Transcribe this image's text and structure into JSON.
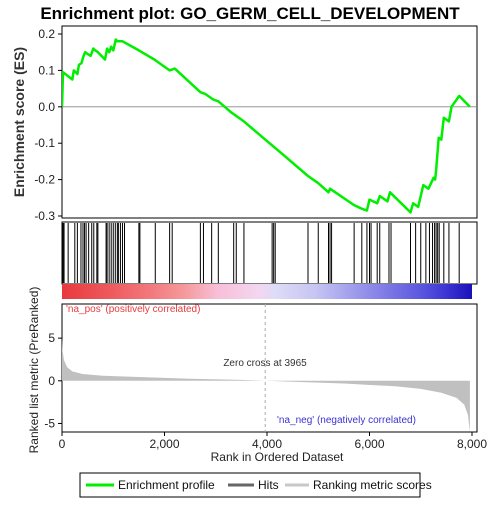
{
  "chart_data": [
    {
      "type": "line",
      "title": "Enrichment plot: GO_GERM_CELL_DEVELOPMENT",
      "ylabel": "Enrichment score (ES)",
      "ylim": [
        -0.3,
        0.2
      ],
      "xlim": [
        0,
        8000
      ],
      "grid": false,
      "y_ticks": [
        "0.2",
        "0.1",
        "0.0",
        "-0.1",
        "-0.2",
        "-0.3"
      ],
      "series": [
        {
          "name": "Enrichment profile",
          "color": "#00ee00",
          "x": [
            0,
            20,
            200,
            230,
            300,
            330,
            380,
            410,
            450,
            500,
            560,
            610,
            650,
            700,
            840,
            880,
            920,
            960,
            1000,
            1050,
            1080,
            1120,
            1180,
            1500,
            1800,
            2100,
            2200,
            2700,
            2800,
            2950,
            3050,
            3300,
            3550,
            3965,
            4300,
            4800,
            5000,
            5200,
            5230,
            5700,
            5850,
            5950,
            6000,
            6150,
            6200,
            6350,
            6400,
            6800,
            6850,
            6950,
            7050,
            7150,
            7250,
            7280,
            7300,
            7350,
            7400,
            7450,
            7550,
            7600,
            7750,
            7960
          ],
          "y": [
            0.0,
            0.095,
            0.075,
            0.1,
            0.09,
            0.115,
            0.12,
            0.135,
            0.15,
            0.145,
            0.14,
            0.16,
            0.155,
            0.15,
            0.13,
            0.16,
            0.15,
            0.165,
            0.155,
            0.185,
            0.18,
            0.18,
            0.18,
            0.155,
            0.13,
            0.1,
            0.105,
            0.04,
            0.035,
            0.02,
            0.015,
            -0.015,
            -0.04,
            -0.09,
            -0.13,
            -0.19,
            -0.21,
            -0.235,
            -0.225,
            -0.27,
            -0.28,
            -0.285,
            -0.255,
            -0.265,
            -0.245,
            -0.26,
            -0.235,
            -0.29,
            -0.265,
            -0.275,
            -0.215,
            -0.225,
            -0.195,
            -0.2,
            -0.175,
            -0.085,
            -0.09,
            -0.03,
            -0.04,
            0.0,
            0.03,
            0.0
          ]
        }
      ]
    },
    {
      "type": "scatter",
      "legend_label": "Hits",
      "xlim": [
        0,
        8000
      ],
      "hits": [
        20,
        40,
        120,
        250,
        300,
        370,
        410,
        440,
        470,
        520,
        580,
        620,
        680,
        700,
        860,
        880,
        920,
        960,
        1000,
        1040,
        1080,
        1100,
        1140,
        1180,
        1220,
        1500,
        1520,
        1820,
        2100,
        2150,
        2700,
        2760,
        2920,
        3050,
        3350,
        3400,
        3550,
        4100,
        4130,
        4160,
        4800,
        5000,
        5200,
        5230,
        5260,
        5700,
        5850,
        5950,
        6000,
        6030,
        6150,
        6200,
        6380,
        6420,
        6800,
        6900,
        7000,
        7100,
        7170,
        7230,
        7270,
        7300,
        7330,
        7360,
        7450,
        7550,
        7750
      ]
    },
    {
      "type": "heatmap",
      "xlim": [
        0,
        8000
      ],
      "gradient_stops": [
        {
          "at": 0.0,
          "color": "#e8393d"
        },
        {
          "at": 0.12,
          "color": "#ee5a5e"
        },
        {
          "at": 0.22,
          "color": "#f27a7e"
        },
        {
          "at": 0.3,
          "color": "#f59a9c"
        },
        {
          "at": 0.38,
          "color": "#f8bfd8"
        },
        {
          "at": 0.48,
          "color": "#f3d6f0"
        },
        {
          "at": 0.52,
          "color": "#dddcf8"
        },
        {
          "at": 0.62,
          "color": "#c6c4f2"
        },
        {
          "at": 0.72,
          "color": "#9b98ec"
        },
        {
          "at": 0.8,
          "color": "#7a76e6"
        },
        {
          "at": 0.88,
          "color": "#5a55de"
        },
        {
          "at": 0.94,
          "color": "#3a33d2"
        },
        {
          "at": 1.0,
          "color": "#1a10b8"
        }
      ]
    },
    {
      "type": "area",
      "ylabel": "Ranked list metric (PreRanked)",
      "xlabel": "Rank in Ordered Dataset",
      "xlim": [
        0,
        8000
      ],
      "ylim": [
        -6,
        9
      ],
      "y_ticks": [
        "5",
        "0",
        "-5"
      ],
      "x_ticks": [
        "0",
        "2,000",
        "4,000",
        "6,000",
        "8,000"
      ],
      "x": [
        0,
        10,
        40,
        100,
        200,
        400,
        800,
        1500,
        2500,
        3500,
        3965,
        4500,
        5500,
        6500,
        7000,
        7400,
        7700,
        7850,
        7920,
        7960
      ],
      "y": [
        5.0,
        3.6,
        2.4,
        1.6,
        1.1,
        0.8,
        0.6,
        0.45,
        0.25,
        0.1,
        0.0,
        -0.12,
        -0.32,
        -0.65,
        -0.95,
        -1.4,
        -2.0,
        -2.8,
        -4.0,
        -6.0
      ],
      "color": "#c0c0c0",
      "annotations": {
        "zero_cross": "Zero cross at 3965",
        "zero_cross_rank": 3965,
        "pos_label": "'na_pos' (positively correlated)",
        "neg_label": "'na_neg' (negatively correlated)",
        "pos_color": "#e8393d",
        "neg_color": "#3a33d2"
      }
    }
  ],
  "legend": {
    "items": [
      {
        "label": "Enrichment profile",
        "color": "#00ee00"
      },
      {
        "label": "Hits",
        "color": "#666666"
      },
      {
        "label": "Ranking metric scores",
        "color": "#c8c8c8"
      }
    ]
  }
}
